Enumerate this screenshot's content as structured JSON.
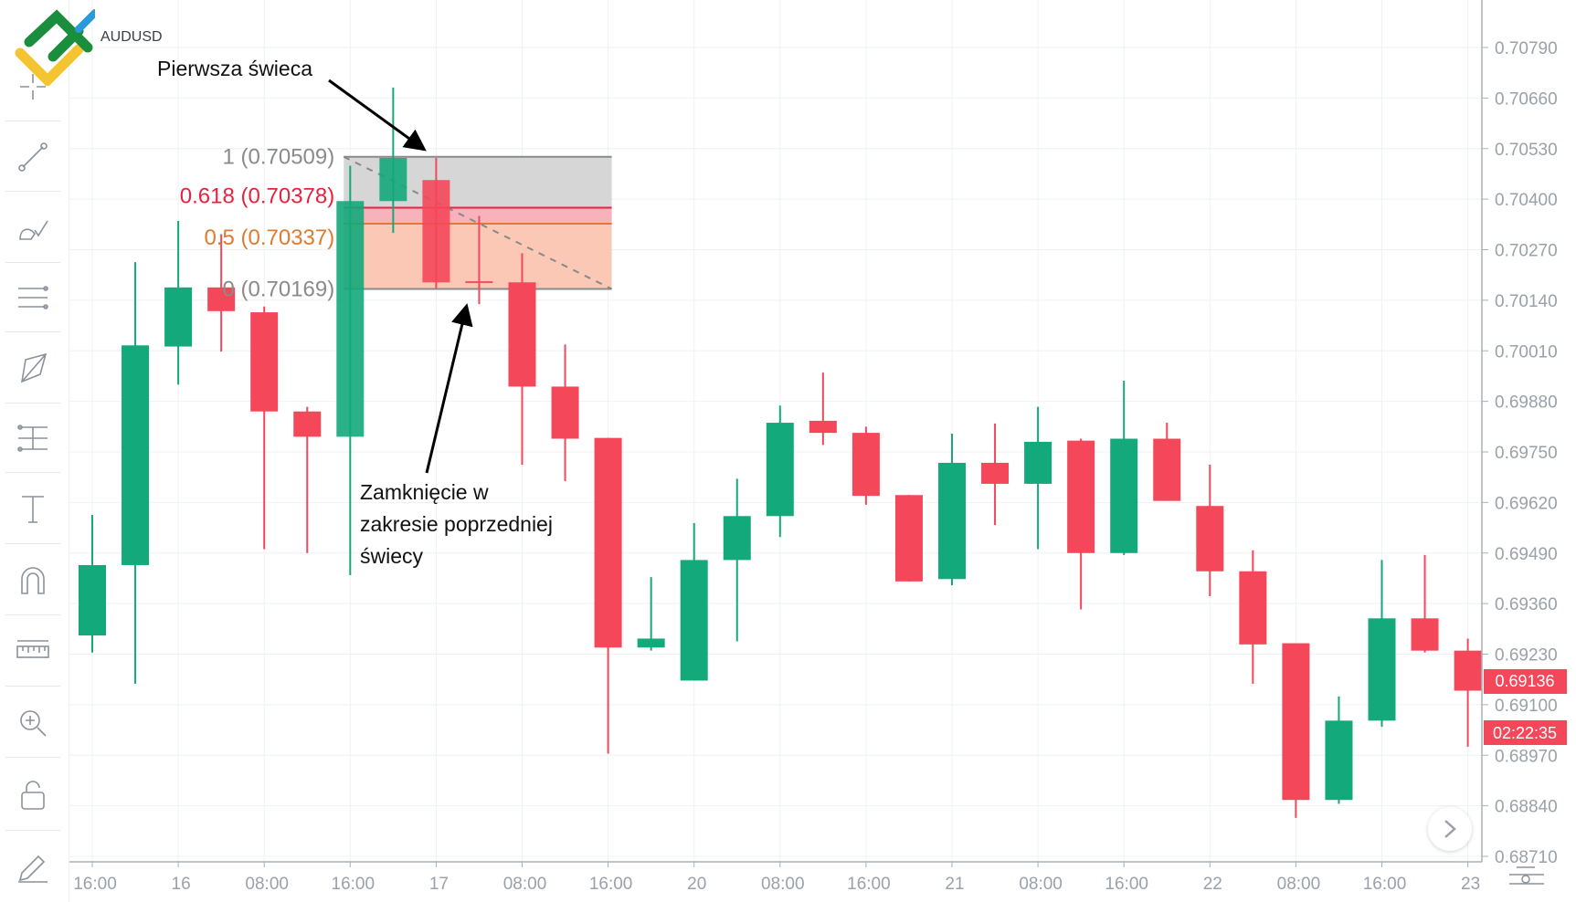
{
  "symbol": "AUDUSD",
  "toolbar": {
    "tools": [
      "crosshair-icon",
      "trend-line-icon",
      "brush-icon",
      "parallel-channel-icon",
      "polygon-icon",
      "fib-retracement-icon",
      "text-icon",
      "magnet-icon",
      "ruler-icon",
      "zoom-in-icon",
      "lock-icon",
      "edit-icon"
    ]
  },
  "annotations": {
    "first_candle": "Pierwsza świeca",
    "close_line1": "Zamknięcie w",
    "close_line2": "zakresie poprzedniej",
    "close_line3": "świecy"
  },
  "price_label": {
    "value": "0.69136",
    "countdown": "02:22:35"
  },
  "colors": {
    "up": "#13a97a",
    "down": "#f4475a",
    "fib_1": "#8a8a8a",
    "fib_618": "#e8213f",
    "fib_05": "#e07a2f",
    "fib_0": "#8a8a8a"
  },
  "chart_data": {
    "type": "candlestick",
    "title": "",
    "xlabel": "",
    "ylabel": "",
    "interval": "4h",
    "x_tick_labels": [
      "16:00",
      "16",
      "08:00",
      "16:00",
      "17",
      "08:00",
      "16:00",
      "20",
      "08:00",
      "16:00",
      "21",
      "08:00",
      "16:00",
      "22",
      "08:00",
      "16:00",
      "23"
    ],
    "y_tick_labels": [
      "0.70790",
      "0.70660",
      "0.70530",
      "0.70400",
      "0.70270",
      "0.70140",
      "0.70010",
      "0.69880",
      "0.69750",
      "0.69620",
      "0.69490",
      "0.69360",
      "0.69230",
      "0.69100",
      "0.68970",
      "0.68840",
      "0.68710"
    ],
    "ylim": [
      0.6871,
      0.7079
    ],
    "grid": true,
    "ohlc": [
      [
        0.69278,
        0.69588,
        0.69234,
        0.69459
      ],
      [
        0.69459,
        0.70238,
        0.69154,
        0.70024
      ],
      [
        0.70021,
        0.70344,
        0.69923,
        0.70173
      ],
      [
        0.70173,
        0.7031,
        0.70008,
        0.70112
      ],
      [
        0.70109,
        0.70124,
        0.695,
        0.69854
      ],
      [
        0.69854,
        0.69866,
        0.6949,
        0.69789
      ],
      [
        0.69789,
        0.70486,
        0.69433,
        0.70395
      ],
      [
        0.70395,
        0.70687,
        0.70313,
        0.70506
      ],
      [
        0.70449,
        0.70506,
        0.70171,
        0.70186
      ],
      [
        0.70189,
        0.70357,
        0.7013,
        0.70184
      ],
      [
        0.70186,
        0.70261,
        0.69717,
        0.69918
      ],
      [
        0.69918,
        0.70026,
        0.69675,
        0.69784
      ],
      [
        0.69786,
        0.69786,
        0.68974,
        0.69247
      ],
      [
        0.69247,
        0.69428,
        0.69239,
        0.6927
      ],
      [
        0.69162,
        0.69567,
        0.69162,
        0.69472
      ],
      [
        0.69472,
        0.69681,
        0.69263,
        0.69585
      ],
      [
        0.69585,
        0.69869,
        0.69531,
        0.69825
      ],
      [
        0.6983,
        0.69954,
        0.69768,
        0.69799
      ],
      [
        0.69799,
        0.69815,
        0.69614,
        0.69637
      ],
      [
        0.69639,
        0.69639,
        0.69417,
        0.69417
      ],
      [
        0.69423,
        0.69797,
        0.69407,
        0.69722
      ],
      [
        0.69722,
        0.69823,
        0.69562,
        0.69668
      ],
      [
        0.69668,
        0.69866,
        0.695,
        0.69776
      ],
      [
        0.69779,
        0.69784,
        0.69345,
        0.6949
      ],
      [
        0.6949,
        0.69933,
        0.69485,
        0.69784
      ],
      [
        0.69784,
        0.69825,
        0.69624,
        0.69624
      ],
      [
        0.69611,
        0.69717,
        0.69379,
        0.69443
      ],
      [
        0.69443,
        0.69497,
        0.69154,
        0.69255
      ],
      [
        0.69258,
        0.69258,
        0.68809,
        0.68855
      ],
      [
        0.68855,
        0.69121,
        0.68845,
        0.69059
      ],
      [
        0.69059,
        0.69472,
        0.69043,
        0.69322
      ],
      [
        0.69322,
        0.69485,
        0.69234,
        0.69239
      ],
      [
        0.69239,
        0.6927,
        0.68992,
        0.69136
      ]
    ],
    "fibonacci": {
      "start_candle": 5,
      "end_candle": 12,
      "levels": [
        {
          "ratio": "1",
          "price": 0.70509,
          "label": "1 (0.70509)"
        },
        {
          "ratio": "0.618",
          "price": 0.70378,
          "label": "0.618 (0.70378)"
        },
        {
          "ratio": "0.5",
          "price": 0.70337,
          "label": "0.5 (0.70337)"
        },
        {
          "ratio": "0",
          "price": 0.70169,
          "label": "0 (0.70169)"
        }
      ]
    }
  }
}
